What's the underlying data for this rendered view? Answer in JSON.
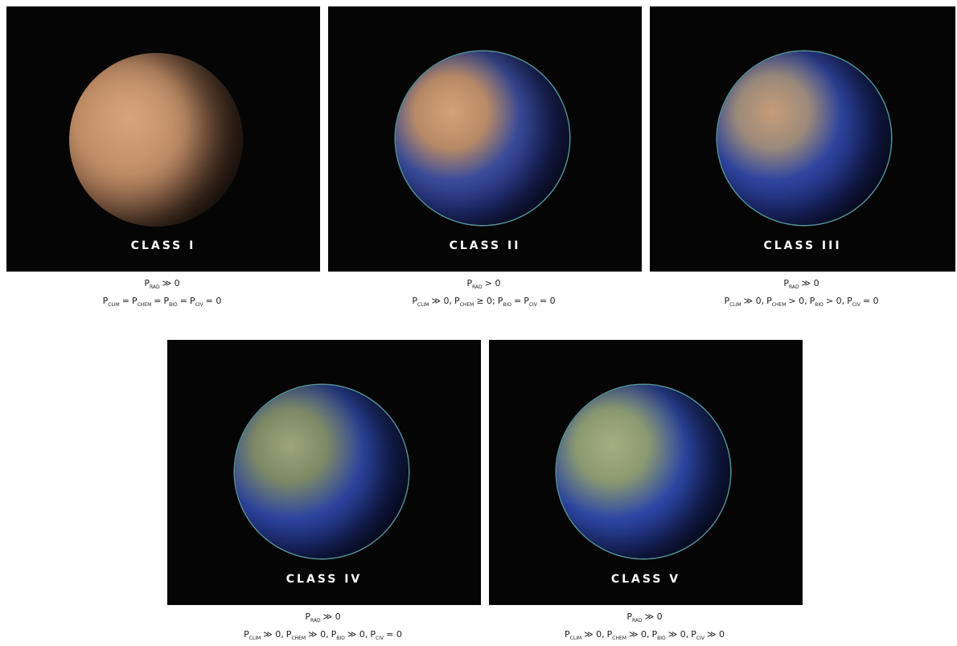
{
  "panels": [
    {
      "label": "CLASS I",
      "lines": [
        [
          {
            "symbol": "P",
            "sub": "RAD",
            "rel": "≫ 0"
          }
        ],
        [
          {
            "symbol": "P",
            "sub": "CLIM",
            "rel": "="
          },
          {
            "symbol": "P",
            "sub": "CHEM",
            "rel": "="
          },
          {
            "symbol": "P",
            "sub": "BIO",
            "rel": "="
          },
          {
            "symbol": "P",
            "sub": "CIV",
            "rel": "= 0"
          }
        ]
      ]
    },
    {
      "label": "CLASS II",
      "lines": [
        [
          {
            "symbol": "P",
            "sub": "RAD",
            "rel": "> 0"
          }
        ],
        [
          {
            "symbol": "P",
            "sub": "CLIM",
            "rel": "≫ 0,"
          },
          {
            "symbol": "P",
            "sub": "CHEM",
            "rel": "≥ 0;"
          },
          {
            "symbol": "P",
            "sub": "BIO",
            "rel": "="
          },
          {
            "symbol": "P",
            "sub": "CIV",
            "rel": "= 0"
          }
        ]
      ]
    },
    {
      "label": "CLASS III",
      "lines": [
        [
          {
            "symbol": "P",
            "sub": "RAD",
            "rel": "≫ 0"
          }
        ],
        [
          {
            "symbol": "P",
            "sub": "CLIM",
            "rel": "≫ 0,"
          },
          {
            "symbol": "P",
            "sub": "CHEM",
            "rel": "> 0,"
          },
          {
            "symbol": "P",
            "sub": "BIO",
            "rel": "> 0,"
          },
          {
            "symbol": "P",
            "sub": "CIV",
            "rel": "= 0"
          }
        ]
      ]
    },
    {
      "label": "CLASS IV",
      "lines": [
        [
          {
            "symbol": "P",
            "sub": "RAD",
            "rel": "≫ 0"
          }
        ],
        [
          {
            "symbol": "P",
            "sub": "CLIM",
            "rel": "≫ 0,"
          },
          {
            "symbol": "P",
            "sub": "CHEM",
            "rel": "≫ 0,"
          },
          {
            "symbol": "P",
            "sub": "BIO",
            "rel": "≫ 0,"
          },
          {
            "symbol": "P",
            "sub": "CIV",
            "rel": "= 0"
          }
        ]
      ]
    },
    {
      "label": "CLASS V",
      "lines": [
        [
          {
            "symbol": "P",
            "sub": "RAD",
            "rel": "≫ 0"
          }
        ],
        [
          {
            "symbol": "P",
            "sub": "CLIM",
            "rel": "≫ 0,"
          },
          {
            "symbol": "P",
            "sub": "CHEM",
            "rel": "≫ 0,"
          },
          {
            "symbol": "P",
            "sub": "BIO",
            "rel": "≫ 0,"
          },
          {
            "symbol": "P",
            "sub": "CIV",
            "rel": "≫ 0"
          }
        ]
      ]
    }
  ]
}
